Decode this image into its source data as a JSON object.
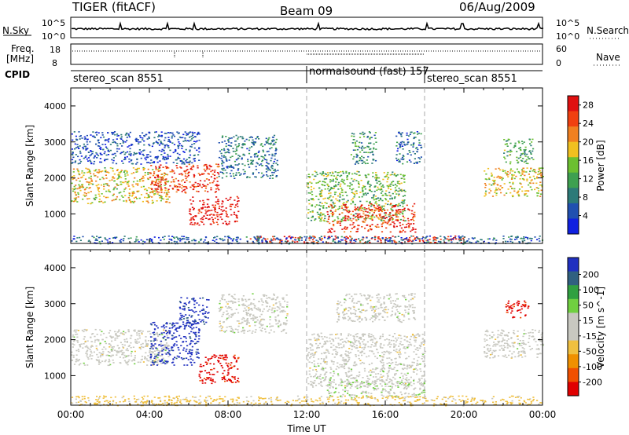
{
  "header": {
    "title": "TIGER (fitACF)",
    "beam": "Beam 09",
    "date": "06/Aug/2009"
  },
  "nsky_panel": {
    "left_label": "N.Sky",
    "right_label": "N.Search",
    "left_ticks": [
      "10^5",
      "10^0"
    ],
    "right_ticks": [
      "10^5",
      "10^0"
    ]
  },
  "freq_panel": {
    "left_label_1": "Freq.",
    "left_label_2": "[MHz]",
    "right_label": "Nave",
    "left_ticks": [
      "18",
      "8"
    ],
    "right_ticks": [
      "60",
      "0"
    ]
  },
  "cpid_panel": {
    "label": "CPID",
    "segments": [
      {
        "name": "stereo_scan 8551",
        "start_hour": 0,
        "end_hour": 12
      },
      {
        "name": "normalsound (fast) 157",
        "start_hour": 12,
        "end_hour": 18
      },
      {
        "name": "stereo_scan 8551",
        "start_hour": 18,
        "end_hour": 24
      }
    ]
  },
  "colors": {
    "power_scale": [
      "#1020e0",
      "#2050b0",
      "#2c7a78",
      "#3ea050",
      "#6cc030",
      "#f0c020",
      "#f08020",
      "#f04010",
      "#e01010"
    ],
    "velocity_scale": [
      "#e00000",
      "#f05000",
      "#f09000",
      "#f0c040",
      "#c8c8c0",
      "#c8c8c0",
      "#70d040",
      "#30a040",
      "#306080",
      "#2030c0"
    ]
  },
  "chart_data": [
    {
      "type": "heatmap",
      "title": "",
      "xlabel": "Time UT",
      "ylabel": "Slant Range [km]",
      "xlim": [
        0,
        24
      ],
      "ylim": [
        180,
        4500
      ],
      "x_ticks": [
        "00:00",
        "04:00",
        "08:00",
        "12:00",
        "16:00",
        "20:00",
        "00:00"
      ],
      "y_ticks": [
        1000,
        2000,
        3000,
        4000
      ],
      "colorbar": {
        "label": "Power [dB]",
        "ticks": [
          4,
          8,
          12,
          16,
          20,
          24,
          28
        ],
        "range": [
          0,
          30
        ]
      },
      "regions": [
        {
          "t0": 0,
          "t1": 5,
          "r0": 1300,
          "r1": 2300,
          "level": 18
        },
        {
          "t0": 4,
          "t1": 7.5,
          "r0": 1600,
          "r1": 2400,
          "level": 26
        },
        {
          "t0": 6,
          "t1": 8.5,
          "r0": 700,
          "r1": 1500,
          "level": 29
        },
        {
          "t0": 7.5,
          "t1": 10.5,
          "r0": 2000,
          "r1": 3200,
          "level": 8
        },
        {
          "t0": 0,
          "t1": 6.5,
          "r0": 2400,
          "r1": 3300,
          "level": 5
        },
        {
          "t0": 12,
          "t1": 17,
          "r0": 800,
          "r1": 2200,
          "level": 14
        },
        {
          "t0": 13,
          "t1": 17.5,
          "r0": 500,
          "r1": 1300,
          "level": 26
        },
        {
          "t0": 14.2,
          "t1": 15.5,
          "r0": 2400,
          "r1": 3300,
          "level": 10
        },
        {
          "t0": 16.5,
          "t1": 17.8,
          "r0": 2400,
          "r1": 3300,
          "level": 7
        },
        {
          "t0": 21,
          "t1": 24,
          "r0": 1500,
          "r1": 2300,
          "level": 18
        },
        {
          "t0": 22,
          "t1": 23.5,
          "r0": 2400,
          "r1": 3100,
          "level": 12
        },
        {
          "t0": 9,
          "t1": 20,
          "r0": 200,
          "r1": 400,
          "level": 26
        },
        {
          "t0": 0,
          "t1": 24,
          "r0": 180,
          "r1": 400,
          "level": 6
        }
      ]
    },
    {
      "type": "heatmap",
      "title": "",
      "xlabel": "Time UT",
      "ylabel": "Slant Range [km]",
      "xlim": [
        0,
        24
      ],
      "ylim": [
        180,
        4500
      ],
      "x_ticks": [
        "00:00",
        "04:00",
        "08:00",
        "12:00",
        "16:00",
        "20:00",
        "00:00"
      ],
      "y_ticks": [
        1000,
        2000,
        3000,
        4000
      ],
      "colorbar": {
        "label": "Velocity [m s^-1]",
        "ticks": [
          200,
          100,
          50,
          15,
          -15,
          -50,
          -100,
          -200
        ],
        "range": [
          -250,
          250
        ]
      },
      "regions": [
        {
          "t0": 0,
          "t1": 5,
          "r0": 1300,
          "r1": 2300,
          "level": 0
        },
        {
          "t0": 4,
          "t1": 6.5,
          "r0": 1300,
          "r1": 2500,
          "level": 220
        },
        {
          "t0": 6.5,
          "t1": 8.5,
          "r0": 800,
          "r1": 1600,
          "level": -220
        },
        {
          "t0": 5.5,
          "t1": 7,
          "r0": 2400,
          "r1": 3200,
          "level": 220
        },
        {
          "t0": 7.5,
          "t1": 11,
          "r0": 2200,
          "r1": 3300,
          "level": 0
        },
        {
          "t0": 12,
          "t1": 18,
          "r0": 700,
          "r1": 2200,
          "level": 0
        },
        {
          "t0": 13,
          "t1": 18,
          "r0": 400,
          "r1": 900,
          "level": 40
        },
        {
          "t0": 13.5,
          "t1": 17.5,
          "r0": 2500,
          "r1": 3300,
          "level": 0
        },
        {
          "t0": 21,
          "t1": 24,
          "r0": 1500,
          "r1": 2300,
          "level": 0
        },
        {
          "t0": 22.1,
          "t1": 23.3,
          "r0": 2600,
          "r1": 3100,
          "level": -220
        },
        {
          "t0": 0,
          "t1": 24,
          "r0": 180,
          "r1": 450,
          "level": -70
        }
      ]
    }
  ]
}
